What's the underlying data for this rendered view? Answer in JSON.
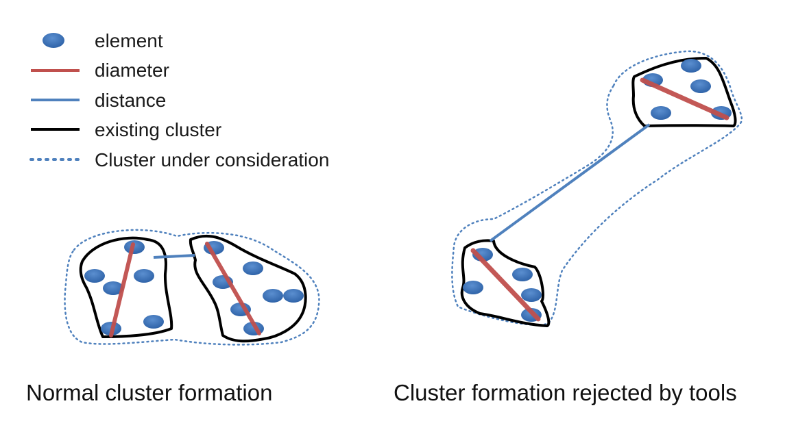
{
  "legend": {
    "items": [
      {
        "symbol": "element",
        "label": "element"
      },
      {
        "symbol": "diameter",
        "label": "diameter"
      },
      {
        "symbol": "distance",
        "label": "distance"
      },
      {
        "symbol": "existing-cluster",
        "label": "existing cluster"
      },
      {
        "symbol": "cluster-under-consideration",
        "label": "Cluster under consideration"
      }
    ]
  },
  "captions": {
    "left": "Normal cluster formation",
    "right": "Cluster formation rejected by tools"
  },
  "colors": {
    "element": "#3f74b8",
    "diameter": "#c0504d",
    "distance": "#4f81bd",
    "existing_cluster": "#000000",
    "cluster_under_consideration": "#4f81bd"
  }
}
